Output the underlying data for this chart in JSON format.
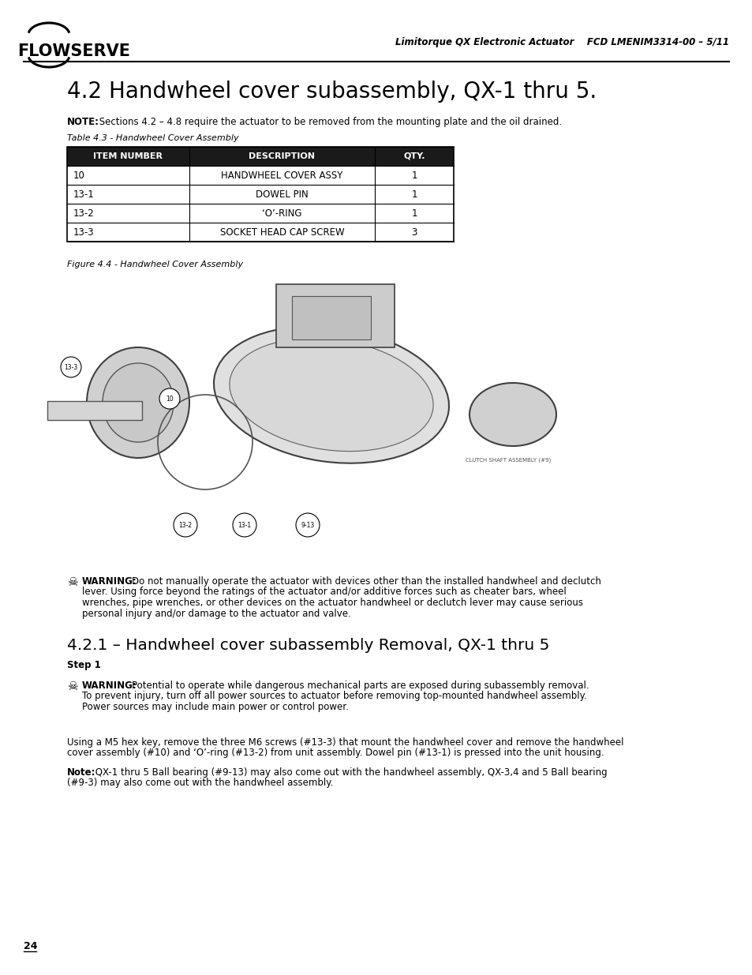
{
  "page_bg": "#ffffff",
  "header_right": "Limitorque QX Electronic Actuator    FCD LMENIM3314-00 – 5/11",
  "main_title": "4.2 Handwheel cover subassembly, QX-1 thru 5.",
  "note_bold": "NOTE:",
  "note_text": " Sections 4.2 – 4.8 require the actuator to be removed from the mounting plate and the oil drained.",
  "table_caption": "Table 4.3 - Handwheel Cover Assembly",
  "table_headers": [
    "ITEM NUMBER",
    "DESCRIPTION",
    "QTY."
  ],
  "table_rows": [
    [
      "10",
      "HANDWHEEL COVER ASSY",
      "1"
    ],
    [
      "13-1",
      "DOWEL PIN",
      "1"
    ],
    [
      "13-2",
      "‘O’-RING",
      "1"
    ],
    [
      "13-3",
      "SOCKET HEAD CAP SCREW",
      "3"
    ]
  ],
  "figure_caption": "Figure 4.4 - Handwheel Cover Assembly",
  "warning1_bold": "WARNING:",
  "warning1_lines": [
    "Do not manually operate the actuator with devices other than the installed handwheel and declutch",
    "lever. Using force beyond the ratings of the actuator and/or additive forces such as cheater bars, wheel",
    "wrenches, pipe wrenches, or other devices on the actuator handwheel or declutch lever may cause serious",
    "personal injury and/or damage to the actuator and valve."
  ],
  "section_title": "4.2.1 – Handwheel cover subassembly Removal, QX-1 thru 5",
  "step1_bold": "Step 1",
  "warning2_bold": "WARNING:",
  "warning2_lines": [
    "Potential to operate while dangerous mechanical parts are exposed during subassembly removal.",
    "To prevent injury, turn off all power sources to actuator before removing top-mounted handwheel assembly.",
    "Power sources may include main power or control power."
  ],
  "para1_lines": [
    "Using a M5 hex key, remove the three M6 screws (#13-3) that mount the handwheel cover and remove the handwheel",
    "cover assembly (#10) and ‘O’-ring (#13-2) from unit assembly. Dowel pin (#13-1) is pressed into the unit housing."
  ],
  "note2_bold": "Note:",
  "note2_lines": [
    " QX-1 thru 5 Ball bearing (#9-13) may also come out with the handwheel assembly, QX-3,4 and 5 Ball bearing",
    "(#9-3) may also come out with the handwheel assembly."
  ],
  "page_number": "24",
  "table_header_bg": "#1a1a1a",
  "table_border": "#000000"
}
